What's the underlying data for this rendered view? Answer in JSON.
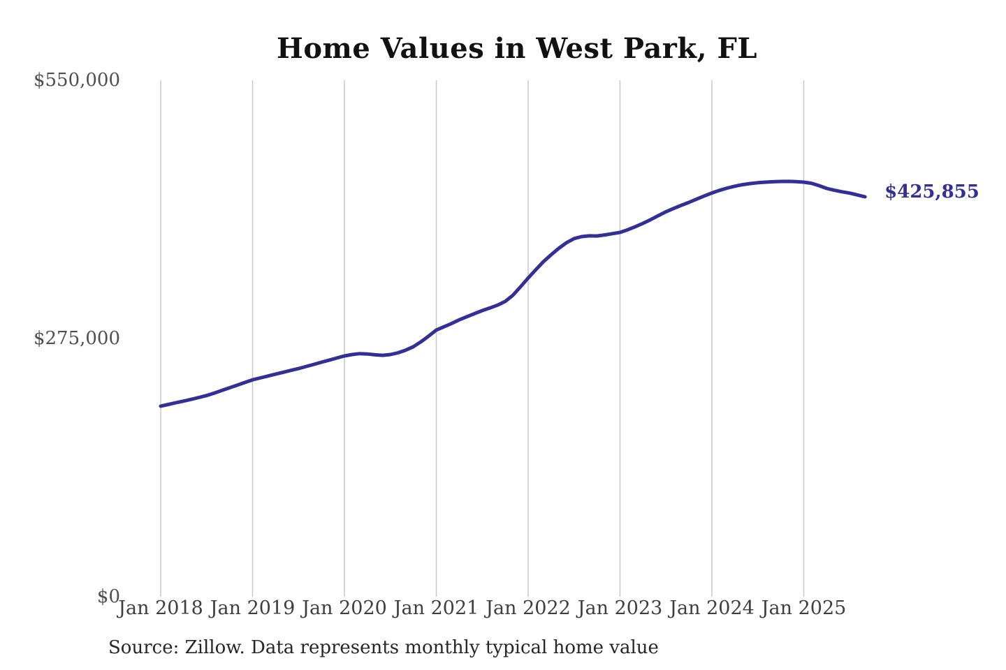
{
  "title": "Home Values in West Park, FL",
  "source_note": "Source: Zillow. Data represents monthly typical home value",
  "colors": {
    "background": "#ffffff",
    "line": "#332f96",
    "end_label": "#332f96",
    "gridline": "#c9c9c9",
    "title": "#111111",
    "y_tick": "#4f4f4f",
    "x_tick": "#3e3e3e",
    "source": "#262626"
  },
  "chart_data": {
    "type": "line",
    "title": "Home Values in West Park, FL",
    "series_name": "Monthly typical home value",
    "x_start": "2018-01",
    "x_end": "2025-09",
    "x_tick_labels": [
      "Jan 2018",
      "Jan 2019",
      "Jan 2020",
      "Jan 2021",
      "Jan 2022",
      "Jan 2023",
      "Jan 2024",
      "Jan 2025"
    ],
    "y_tick_labels": [
      "$0",
      "$275,000",
      "$550,000"
    ],
    "y_tick_values": [
      0,
      275000,
      550000
    ],
    "ylim": [
      0,
      550000
    ],
    "grid": "vertical-only",
    "legend": "none",
    "end_label": "$425,855",
    "end_value": 425855,
    "values": [
      203000,
      204800,
      206600,
      208300,
      210200,
      212200,
      214300,
      216900,
      219700,
      222500,
      225300,
      228200,
      231000,
      233000,
      235000,
      237000,
      239000,
      241000,
      243000,
      245200,
      247400,
      249700,
      251900,
      254200,
      256400,
      257900,
      258900,
      258500,
      257600,
      257100,
      257900,
      259800,
      262600,
      266200,
      271500,
      277500,
      284000,
      287500,
      291000,
      294900,
      298200,
      301500,
      304700,
      307500,
      310500,
      314500,
      321000,
      330000,
      339400,
      348300,
      356800,
      364200,
      371000,
      377000,
      381400,
      383500,
      384300,
      384200,
      385300,
      386600,
      388000,
      390800,
      394100,
      397600,
      401600,
      405800,
      410000,
      413500,
      416800,
      419900,
      423400,
      426800,
      430000,
      432800,
      435200,
      437200,
      438800,
      440000,
      440900,
      441500,
      441900,
      442200,
      442300,
      442000,
      441500,
      440300,
      437800,
      434800,
      432900,
      431200,
      429800,
      427900,
      425855
    ]
  }
}
